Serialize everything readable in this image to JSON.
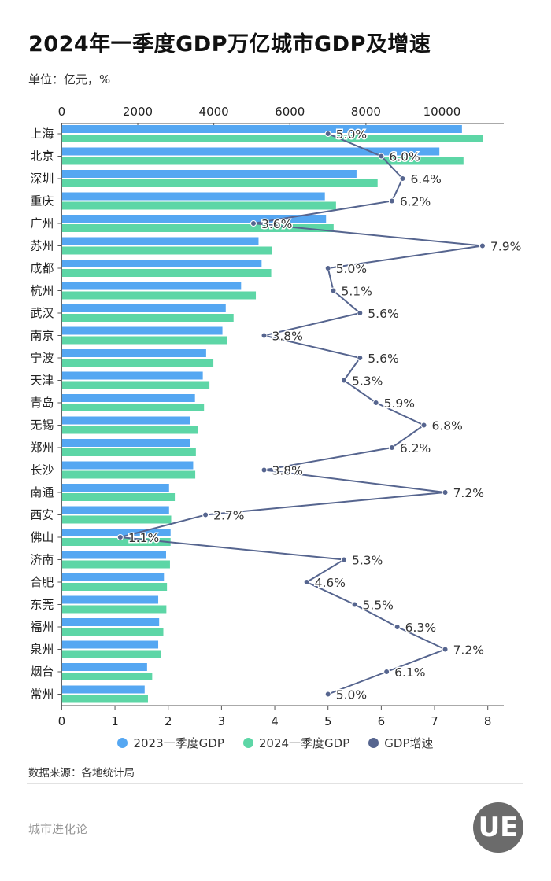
{
  "title": "2024年一季度GDP万亿城市GDP及增速",
  "unit": "单位：亿元，%",
  "legend": [
    {
      "label": "2023一季度GDP",
      "color": "#55a7f2"
    },
    {
      "label": "2024一季度GDP",
      "color": "#5dd6a6"
    },
    {
      "label": "GDP增速",
      "color": "#56658f"
    }
  ],
  "source": "数据来源：各地统计局",
  "brand": "城市进化论",
  "logo_text": "UE",
  "chart_data": {
    "type": "bar",
    "orientation": "horizontal",
    "title": "2024年一季度GDP万亿城市GDP及增速",
    "categories": [
      "上海",
      "北京",
      "深圳",
      "重庆",
      "广州",
      "苏州",
      "成都",
      "杭州",
      "武汉",
      "南京",
      "宁波",
      "天津",
      "青岛",
      "无锡",
      "郑州",
      "长沙",
      "南通",
      "西安",
      "佛山",
      "济南",
      "合肥",
      "东莞",
      "福州",
      "泉州",
      "烟台",
      "常州"
    ],
    "series": [
      {
        "name": "2023一季度GDP",
        "type": "bar",
        "axis": "top",
        "color": "#55a7f2",
        "values": [
          10515,
          9921,
          7742,
          6910,
          6941,
          5166,
          5246,
          4707,
          4303,
          4216,
          3788,
          3700,
          3494,
          3376,
          3368,
          3447,
          2813,
          2813,
          2853,
          2734,
          2678,
          2528,
          2552,
          2528,
          2235,
          2171
        ]
      },
      {
        "name": "2024一季度GDP",
        "type": "bar",
        "axis": "top",
        "color": "#5dd6a6",
        "values": [
          11070,
          10555,
          8297,
          7203,
          7140,
          5523,
          5499,
          5095,
          4509,
          4342,
          3978,
          3875,
          3732,
          3566,
          3518,
          3502,
          2964,
          2869,
          2853,
          2837,
          2758,
          2742,
          2662,
          2599,
          2369,
          2258
        ]
      },
      {
        "name": "GDP增速",
        "type": "line",
        "axis": "bottom",
        "color": "#56658f",
        "values": [
          5.0,
          6.0,
          6.4,
          6.2,
          3.6,
          7.9,
          5.0,
          5.1,
          5.6,
          3.8,
          5.6,
          5.3,
          5.9,
          6.8,
          6.2,
          3.8,
          7.2,
          2.7,
          1.1,
          5.3,
          4.6,
          5.5,
          6.3,
          7.2,
          6.1,
          5.0
        ]
      }
    ],
    "top_axis": {
      "ticks": [
        0,
        2000,
        4000,
        6000,
        8000,
        10000
      ],
      "range": [
        0,
        11625
      ]
    },
    "bottom_axis": {
      "ticks": [
        0,
        1,
        2,
        3,
        4,
        5,
        6,
        7,
        8
      ],
      "range": [
        0,
        8.3
      ]
    },
    "data_label_suffix": "%",
    "grid": false,
    "legend_position": "bottom"
  }
}
